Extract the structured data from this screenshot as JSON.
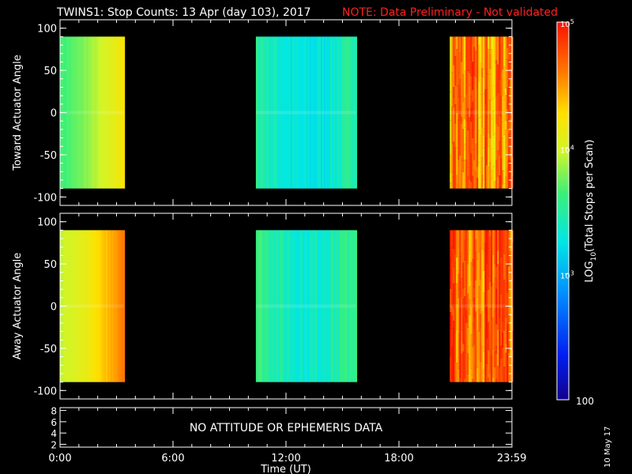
{
  "title": {
    "main": "TWINS1: Stop Counts: 13 Apr (day 103), 2017",
    "note": "NOTE: Data Preliminary - Not validated",
    "note_color": "#ff2020"
  },
  "date_stamp": "10 May 17",
  "chart_data": [
    {
      "type": "heatmap",
      "panel": "top",
      "ylabel": "Toward Actuator Angle",
      "ylim": [
        -110,
        110
      ],
      "yticks": [
        100,
        50,
        0,
        -50,
        -100
      ],
      "x_range_hours": [
        0,
        24
      ],
      "angle_range": [
        -90,
        90
      ],
      "blocks": [
        {
          "start_hour": 0.0,
          "end_hour": 3.4,
          "pattern": "gradient",
          "from_log": 3.65,
          "to_log": 4.25
        },
        {
          "start_hour": 10.4,
          "end_hour": 15.7,
          "pattern": "dip",
          "edge_log": 3.55,
          "center_log": 3.25
        },
        {
          "start_hour": 20.7,
          "end_hour": 23.99,
          "pattern": "noisy",
          "base_log": 4.55,
          "spread": 0.35
        }
      ],
      "color_scale": "log10",
      "clim": [
        100,
        100000
      ]
    },
    {
      "type": "heatmap",
      "panel": "middle",
      "ylabel": "Away Actuator Angle",
      "ylim": [
        -110,
        110
      ],
      "yticks": [
        100,
        50,
        0,
        -50,
        -100
      ],
      "x_range_hours": [
        0,
        24
      ],
      "angle_range": [
        -90,
        90
      ],
      "blocks": [
        {
          "start_hour": 0.0,
          "end_hour": 3.4,
          "pattern": "gradient",
          "from_log": 3.95,
          "to_log": 4.65
        },
        {
          "start_hour": 10.4,
          "end_hour": 15.7,
          "pattern": "dip",
          "edge_log": 3.65,
          "center_log": 3.35
        },
        {
          "start_hour": 20.7,
          "end_hour": 23.99,
          "pattern": "noisy",
          "base_log": 4.7,
          "spread": 0.3
        }
      ],
      "color_scale": "log10",
      "clim": [
        100,
        100000
      ]
    },
    {
      "type": "line",
      "panel": "bottom",
      "ylabel": "",
      "ylim": [
        1.5,
        8.5
      ],
      "yticks": [
        8,
        6,
        4,
        2
      ],
      "message": "NO ATTITUDE OR EPHEMERIS DATA"
    }
  ],
  "x_axis": {
    "label": "Time (UT)",
    "ticks": [
      {
        "hour": 0,
        "label": "0:00"
      },
      {
        "hour": 6,
        "label": "6:00"
      },
      {
        "hour": 12,
        "label": "12:00"
      },
      {
        "hour": 18,
        "label": "18:00"
      },
      {
        "hour": 23.99,
        "label": "23:59"
      }
    ]
  },
  "colorbar": {
    "label": "LOG10(Total Stops per Scan)",
    "tick_labels": [
      {
        "log": 5,
        "label": "10^5"
      },
      {
        "log": 4,
        "label": "10^4"
      },
      {
        "log": 3,
        "label": "10^3"
      },
      {
        "log": 2,
        "label": "100"
      }
    ]
  }
}
